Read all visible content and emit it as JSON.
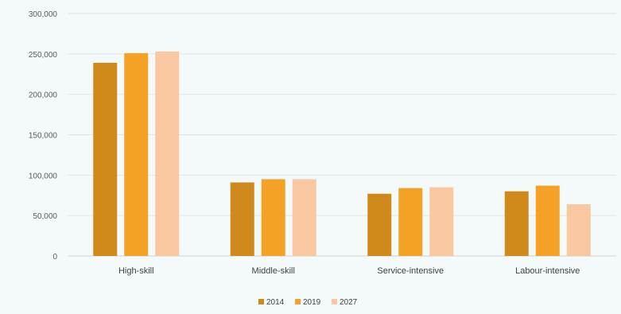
{
  "chart_data": {
    "type": "bar",
    "title": "",
    "xlabel": "",
    "ylabel": "",
    "categories": [
      "High-skill",
      "Middle-skill",
      "Service-intensive",
      "Labour-intensive"
    ],
    "series": [
      {
        "name": "2014",
        "color": "#d08a1c",
        "values": [
          239000,
          91000,
          77000,
          80000
        ]
      },
      {
        "name": "2019",
        "color": "#f3a225",
        "values": [
          251000,
          95000,
          84000,
          87000
        ]
      },
      {
        "name": "2027",
        "color": "#f9c8a0",
        "values": [
          253000,
          95000,
          85000,
          64000
        ]
      }
    ],
    "ylim": [
      0,
      300000
    ],
    "yticks": [
      0,
      50000,
      100000,
      150000,
      200000,
      250000,
      300000
    ],
    "ytick_labels": [
      "0",
      "50,000",
      "100,000",
      "150,000",
      "200,000",
      "250,000",
      "300,000"
    ],
    "grid": true,
    "legend_position": "bottom"
  }
}
